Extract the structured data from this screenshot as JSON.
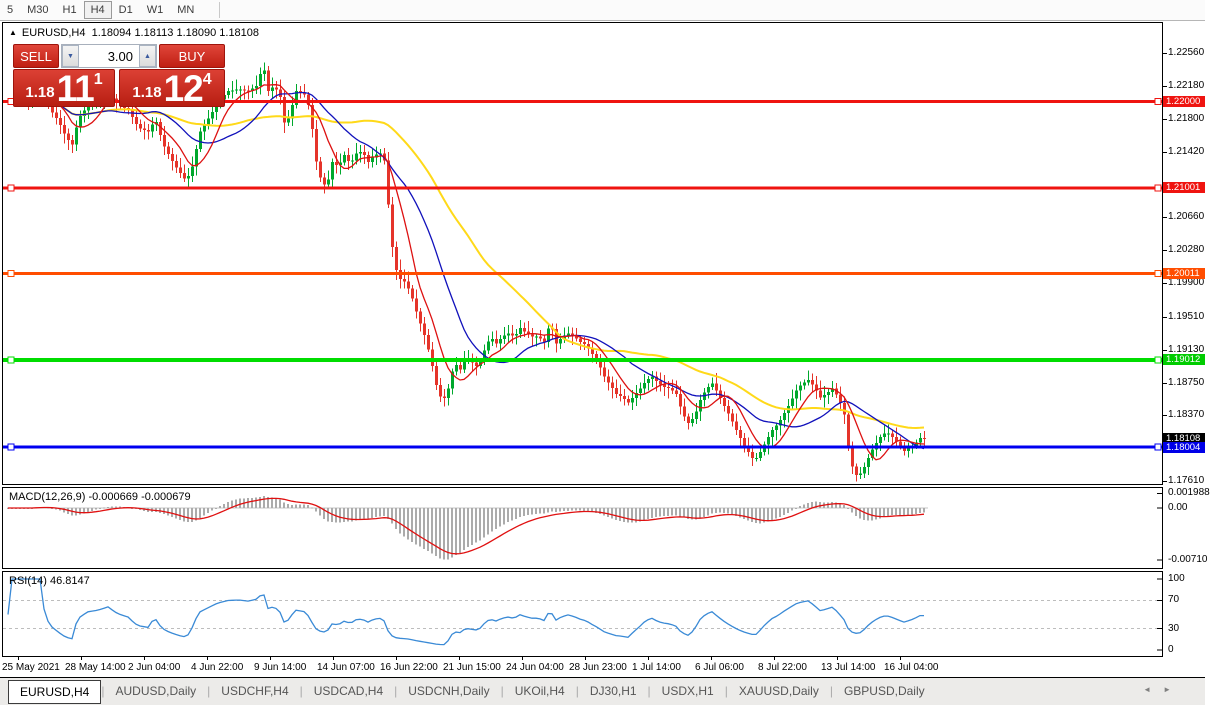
{
  "toolbar": {
    "timeframes": [
      "5",
      "M30",
      "H1",
      "H4",
      "D1",
      "W1",
      "MN"
    ],
    "active_timeframe": "H4"
  },
  "chart": {
    "title_marker": "▲",
    "symbol": "EURUSD,H4",
    "ohlc_text": "1.18094 1.18113 1.18090 1.18108",
    "ohlc_current": {
      "open": 1.18094,
      "high": 1.18113,
      "low": 1.1809,
      "close": 1.18108
    }
  },
  "trade_panel": {
    "sell_label": "SELL",
    "buy_label": "BUY",
    "volume": "3.00",
    "sell_price_base": "1.18",
    "sell_price_big": "11",
    "sell_price_sup": "1",
    "buy_price_base": "1.18",
    "buy_price_big": "12",
    "buy_price_sup": "4"
  },
  "price_axis": {
    "ticks": [
      "1.22560",
      "1.22180",
      "1.21800",
      "1.21420",
      "1.20660",
      "1.20280",
      "1.19900",
      "1.19510",
      "1.19130",
      "1.18750",
      "1.18370",
      "1.17610"
    ],
    "tags": [
      {
        "text": "1.22000",
        "price": 1.22,
        "color": "#ef1410"
      },
      {
        "text": "1.21001",
        "price": 1.21001,
        "color": "#ef1410"
      },
      {
        "text": "1.20011",
        "price": 1.20011,
        "color": "#ff4d00"
      },
      {
        "text": "1.19012",
        "price": 1.19012,
        "color": "#00cc00"
      },
      {
        "text": "1.18108",
        "price": 1.18108,
        "color": "#000000"
      },
      {
        "text": "1.18004",
        "price": 1.18004,
        "color": "#0000e8"
      }
    ]
  },
  "hlines": [
    {
      "label": "1.22000",
      "price": 1.22,
      "color": "#ef1410",
      "w": 3
    },
    {
      "label": "1.21001",
      "price": 1.21001,
      "color": "#ef1410",
      "w": 3
    },
    {
      "label": "1.20011",
      "price": 1.20011,
      "color": "#ff4d00",
      "w": 3
    },
    {
      "label": "1.19012",
      "price": 1.19012,
      "color": "#00dd00",
      "w": 4
    },
    {
      "label": "1.18004",
      "price": 1.18004,
      "color": "#0000f0",
      "w": 3
    }
  ],
  "macd": {
    "label": "MACD(12,26,9) -0.000669 -0.000679",
    "params": {
      "fast": 12,
      "slow": 26,
      "signal": 9
    },
    "current_values": [
      -0.000669,
      -0.000679
    ],
    "axis": [
      {
        "text": "0.001988",
        "value": 0.001988
      },
      {
        "text": "0.00",
        "value": 0.0
      },
      {
        "text": "-0.00710",
        "value": -0.0071
      }
    ]
  },
  "rsi": {
    "label": "RSI(14) 46.8147",
    "period": 14,
    "current_value": 46.8147,
    "axis": [
      {
        "text": "100",
        "value": 100
      },
      {
        "text": "70",
        "value": 70
      },
      {
        "text": "30",
        "value": 30
      },
      {
        "text": "0",
        "value": 0
      }
    ],
    "levels": [
      70,
      30
    ]
  },
  "time_axis": [
    "25 May 2021",
    "28 May 14:00",
    "2 Jun 04:00",
    "4 Jun 22:00",
    "9 Jun 14:00",
    "14 Jun 07:00",
    "16 Jun 22:00",
    "21 Jun 15:00",
    "24 Jun 04:00",
    "28 Jun 23:00",
    "1 Jul 14:00",
    "6 Jul 06:00",
    "8 Jul 22:00",
    "13 Jul 14:00",
    "16 Jul 04:00"
  ],
  "tabs": {
    "items": [
      "EURUSD,H4",
      "AUDUSD,Daily",
      "USDCHF,H4",
      "USDCAD,H4",
      "USDCNH,Daily",
      "UKOil,H4",
      "DJ30,H1",
      "USDX,H1",
      "XAUUSD,Daily",
      "GBPUSD,Daily"
    ],
    "active": "EURUSD,H4"
  },
  "chart_data": {
    "type": "candlestick",
    "symbol": "EURUSD",
    "timeframe": "H4",
    "visible_range": {
      "start": "25 May 2021",
      "end": "16 Jul 2021"
    },
    "price_high": 1.2256,
    "price_low": 1.1761,
    "price_path": [
      [
        28,
        1.22
      ],
      [
        40,
        1.2212
      ],
      [
        50,
        1.219
      ],
      [
        58,
        1.2178
      ],
      [
        66,
        1.2158
      ],
      [
        72,
        1.215
      ],
      [
        78,
        1.218
      ],
      [
        88,
        1.2196
      ],
      [
        98,
        1.22
      ],
      [
        108,
        1.2208
      ],
      [
        118,
        1.2196
      ],
      [
        128,
        1.219
      ],
      [
        138,
        1.217
      ],
      [
        148,
        1.2165
      ],
      [
        155,
        1.218
      ],
      [
        163,
        1.215
      ],
      [
        170,
        1.2135
      ],
      [
        178,
        1.212
      ],
      [
        186,
        1.2108
      ],
      [
        192,
        1.2125
      ],
      [
        200,
        1.2165
      ],
      [
        208,
        1.218
      ],
      [
        218,
        1.22
      ],
      [
        228,
        1.2212
      ],
      [
        238,
        1.2214
      ],
      [
        248,
        1.2212
      ],
      [
        256,
        1.2218
      ],
      [
        263,
        1.2242
      ],
      [
        268,
        1.2212
      ],
      [
        274,
        1.2218
      ],
      [
        280,
        1.2205
      ],
      [
        285,
        1.2168
      ],
      [
        290,
        1.2188
      ],
      [
        296,
        1.2212
      ],
      [
        304,
        1.2208
      ],
      [
        310,
        1.219
      ],
      [
        315,
        1.2135
      ],
      [
        320,
        1.2112
      ],
      [
        326,
        1.21
      ],
      [
        332,
        1.213
      ],
      [
        338,
        1.2125
      ],
      [
        344,
        1.2138
      ],
      [
        350,
        1.2128
      ],
      [
        356,
        1.214
      ],
      [
        362,
        1.2142
      ],
      [
        368,
        1.213
      ],
      [
        374,
        1.2138
      ],
      [
        380,
        1.214
      ],
      [
        385,
        1.213
      ],
      [
        390,
        1.2048
      ],
      [
        395,
        1.2008
      ],
      [
        400,
        1.1995
      ],
      [
        406,
        1.199
      ],
      [
        412,
        1.1972
      ],
      [
        418,
        1.195
      ],
      [
        424,
        1.193
      ],
      [
        430,
        1.1905
      ],
      [
        436,
        1.1872
      ],
      [
        442,
        1.1852
      ],
      [
        448,
        1.1868
      ],
      [
        454,
        1.1898
      ],
      [
        460,
        1.189
      ],
      [
        466,
        1.1905
      ],
      [
        472,
        1.1898
      ],
      [
        478,
        1.1892
      ],
      [
        484,
        1.1912
      ],
      [
        490,
        1.1928
      ],
      [
        496,
        1.192
      ],
      [
        502,
        1.1928
      ],
      [
        508,
        1.1932
      ],
      [
        514,
        1.1928
      ],
      [
        520,
        1.1938
      ],
      [
        526,
        1.1932
      ],
      [
        532,
        1.1928
      ],
      [
        538,
        1.1928
      ],
      [
        544,
        1.1922
      ],
      [
        550,
        1.1945
      ],
      [
        556,
        1.192
      ],
      [
        562,
        1.1928
      ],
      [
        568,
        1.1932
      ],
      [
        574,
        1.1928
      ],
      [
        580,
        1.1922
      ],
      [
        586,
        1.1918
      ],
      [
        592,
        1.1908
      ],
      [
        598,
        1.1898
      ],
      [
        604,
        1.1882
      ],
      [
        610,
        1.1872
      ],
      [
        616,
        1.1862
      ],
      [
        622,
        1.1858
      ],
      [
        628,
        1.1852
      ],
      [
        634,
        1.186
      ],
      [
        640,
        1.1868
      ],
      [
        646,
        1.1878
      ],
      [
        652,
        1.1882
      ],
      [
        658,
        1.1874
      ],
      [
        664,
        1.187
      ],
      [
        670,
        1.1868
      ],
      [
        676,
        1.1862
      ],
      [
        682,
        1.184
      ],
      [
        688,
        1.1828
      ],
      [
        694,
        1.1835
      ],
      [
        700,
        1.1855
      ],
      [
        706,
        1.1868
      ],
      [
        712,
        1.1874
      ],
      [
        718,
        1.1862
      ],
      [
        724,
        1.1848
      ],
      [
        730,
        1.1835
      ],
      [
        736,
        1.182
      ],
      [
        742,
        1.1806
      ],
      [
        748,
        1.1795
      ],
      [
        754,
        1.1784
      ],
      [
        760,
        1.1795
      ],
      [
        766,
        1.1808
      ],
      [
        772,
        1.182
      ],
      [
        778,
        1.1828
      ],
      [
        784,
        1.184
      ],
      [
        790,
        1.1852
      ],
      [
        796,
        1.1866
      ],
      [
        802,
        1.1874
      ],
      [
        808,
        1.1878
      ],
      [
        814,
        1.187
      ],
      [
        820,
        1.1858
      ],
      [
        826,
        1.1862
      ],
      [
        832,
        1.1868
      ],
      [
        838,
        1.1858
      ],
      [
        844,
        1.1838
      ],
      [
        848,
        1.1802
      ],
      [
        852,
        1.1778
      ],
      [
        857,
        1.1766
      ],
      [
        862,
        1.1772
      ],
      [
        868,
        1.1788
      ],
      [
        874,
        1.1802
      ],
      [
        880,
        1.1812
      ],
      [
        886,
        1.1818
      ],
      [
        892,
        1.1812
      ],
      [
        898,
        1.1804
      ],
      [
        904,
        1.1796
      ],
      [
        910,
        1.18
      ],
      [
        916,
        1.1806
      ],
      [
        921,
        1.1812
      ],
      [
        924,
        1.18108
      ]
    ],
    "colors": {
      "candle_up": "#00a82d",
      "candle_down": "#e5342a",
      "ma_fast": "#dd1111",
      "ma_mid": "#1111bb",
      "ma_slow": "#ffd919",
      "macd_hist": "#ababab",
      "macd_signal": "#e01010",
      "rsi_line": "#3a8ad6"
    }
  }
}
